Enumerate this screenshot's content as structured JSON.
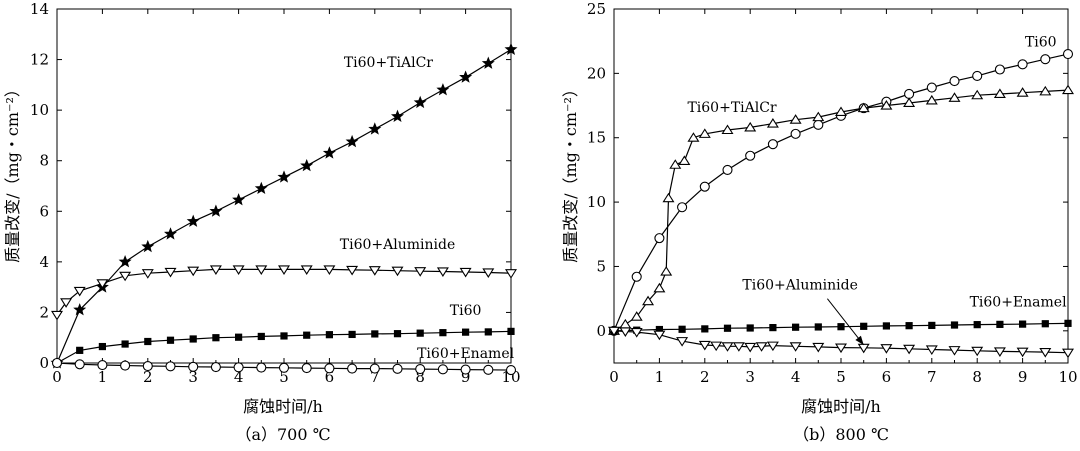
{
  "chart_data": [
    {
      "type": "line",
      "caption": "（a）700 ℃",
      "xlabel": "腐蚀时间/h",
      "ylabel": "质量改变/（mg・cm⁻²）",
      "xlim": [
        0,
        10
      ],
      "ylim": [
        0,
        14
      ],
      "xticks": [
        0,
        1,
        2,
        3,
        4,
        5,
        6,
        7,
        8,
        9,
        10
      ],
      "yticks": [
        0,
        2,
        4,
        6,
        8,
        10,
        12,
        14
      ],
      "grid": false,
      "legend": "labels placed next to curves",
      "series": [
        {
          "name": "Ti60+TiAlCr",
          "marker": "star-filled",
          "x": [
            0,
            0.5,
            1,
            1.5,
            2,
            2.5,
            3,
            3.5,
            4,
            4.5,
            5,
            5.5,
            6,
            6.5,
            7,
            7.5,
            8,
            8.5,
            9,
            9.5,
            10
          ],
          "y": [
            0,
            2.1,
            3.0,
            4.0,
            4.6,
            5.1,
            5.6,
            6.0,
            6.45,
            6.9,
            7.35,
            7.8,
            8.3,
            8.75,
            9.25,
            9.75,
            10.3,
            10.8,
            11.3,
            11.85,
            12.4
          ]
        },
        {
          "name": "Ti60+Aluminide",
          "marker": "triangle-down-open",
          "x": [
            0,
            0.2,
            0.5,
            1,
            1.5,
            2,
            2.5,
            3,
            3.5,
            4,
            4.5,
            5,
            5.5,
            6,
            6.5,
            7,
            7.5,
            8,
            8.5,
            9,
            9.5,
            10
          ],
          "y": [
            1.9,
            2.4,
            2.85,
            3.15,
            3.45,
            3.55,
            3.6,
            3.65,
            3.7,
            3.7,
            3.7,
            3.7,
            3.7,
            3.7,
            3.68,
            3.67,
            3.65,
            3.63,
            3.62,
            3.6,
            3.58,
            3.55
          ]
        },
        {
          "name": "Ti60",
          "marker": "square-filled",
          "x": [
            0,
            0.5,
            1,
            1.5,
            2,
            2.5,
            3,
            3.5,
            4,
            4.5,
            5,
            5.5,
            6,
            6.5,
            7,
            7.5,
            8,
            8.5,
            9,
            9.5,
            10
          ],
          "y": [
            0,
            0.5,
            0.65,
            0.75,
            0.85,
            0.9,
            0.95,
            1.0,
            1.02,
            1.05,
            1.07,
            1.1,
            1.12,
            1.13,
            1.15,
            1.16,
            1.18,
            1.2,
            1.22,
            1.23,
            1.25
          ]
        },
        {
          "name": "Ti60+Enamel",
          "marker": "circle-open",
          "x": [
            0,
            0.5,
            1,
            1.5,
            2,
            2.5,
            3,
            3.5,
            4,
            4.5,
            5,
            5.5,
            6,
            6.5,
            7,
            7.5,
            8,
            8.5,
            9,
            9.5,
            10
          ],
          "y": [
            0,
            -0.05,
            -0.08,
            -0.1,
            -0.12,
            -0.13,
            -0.15,
            -0.16,
            -0.17,
            -0.18,
            -0.19,
            -0.2,
            -0.21,
            -0.22,
            -0.22,
            -0.23,
            -0.24,
            -0.25,
            -0.26,
            -0.27,
            -0.28
          ]
        }
      ],
      "annotations": [
        {
          "text": "Ti60+TiAlCr",
          "x": 7.3,
          "y": 11.7
        },
        {
          "text": "Ti60+Aluminide",
          "x": 7.5,
          "y": 4.5
        },
        {
          "text": "Ti60",
          "x": 9.0,
          "y": 1.9
        },
        {
          "text": "Ti60+Enamel",
          "x": 9.0,
          "y": 0.2
        }
      ]
    },
    {
      "type": "line",
      "caption": "（b）800 ℃",
      "xlabel": "腐蚀时间/h",
      "ylabel": "质量改变/（mg・cm⁻²）",
      "xlim": [
        0,
        10
      ],
      "ylim": [
        -2.5,
        25
      ],
      "xticks": [
        0,
        1,
        2,
        3,
        4,
        5,
        6,
        7,
        8,
        9,
        10
      ],
      "yticks": [
        0,
        5,
        10,
        15,
        20,
        25
      ],
      "grid": false,
      "legend": "labels placed next to curves",
      "series": [
        {
          "name": "Ti60",
          "marker": "circle-open",
          "x": [
            0,
            0.5,
            1,
            1.5,
            2,
            2.5,
            3,
            3.5,
            4,
            4.5,
            5,
            5.5,
            6,
            6.5,
            7,
            7.5,
            8,
            8.5,
            9,
            9.5,
            10
          ],
          "y": [
            0,
            4.2,
            7.2,
            9.6,
            11.2,
            12.5,
            13.6,
            14.5,
            15.3,
            16.0,
            16.7,
            17.3,
            17.8,
            18.4,
            18.9,
            19.4,
            19.8,
            20.3,
            20.7,
            21.1,
            21.5
          ]
        },
        {
          "name": "Ti60+TiAlCr",
          "marker": "triangle-up-open",
          "x": [
            0,
            0.25,
            0.5,
            0.75,
            1.0,
            1.15,
            1.2,
            1.35,
            1.55,
            1.75,
            2.0,
            2.5,
            3.0,
            3.5,
            4.0,
            4.5,
            5.0,
            5.5,
            6.0,
            6.5,
            7.0,
            7.5,
            8.0,
            8.5,
            9.0,
            9.5,
            10.0
          ],
          "y": [
            0,
            0.5,
            1.1,
            2.3,
            3.3,
            4.6,
            10.3,
            12.9,
            13.2,
            15.0,
            15.3,
            15.6,
            15.8,
            16.1,
            16.4,
            16.6,
            17.0,
            17.3,
            17.5,
            17.7,
            17.9,
            18.1,
            18.3,
            18.4,
            18.5,
            18.6,
            18.7
          ]
        },
        {
          "name": "Ti60+Enamel",
          "marker": "square-filled",
          "x": [
            0,
            0.5,
            1,
            1.5,
            2,
            2.5,
            3,
            3.5,
            4,
            4.5,
            5,
            5.5,
            6,
            6.5,
            7,
            7.5,
            8,
            8.5,
            9,
            9.5,
            10
          ],
          "y": [
            0,
            0.05,
            0.1,
            0.12,
            0.15,
            0.2,
            0.22,
            0.25,
            0.28,
            0.3,
            0.32,
            0.35,
            0.38,
            0.4,
            0.42,
            0.45,
            0.48,
            0.5,
            0.52,
            0.55,
            0.58
          ]
        },
        {
          "name": "Ti60+Aluminide",
          "marker": "triangle-down-open",
          "x": [
            0,
            0.25,
            0.5,
            1.0,
            1.5,
            2.0,
            2.25,
            2.5,
            2.75,
            3.0,
            3.25,
            3.5,
            4.0,
            4.5,
            5.0,
            5.5,
            6.0,
            6.5,
            7.0,
            7.5,
            8.0,
            8.5,
            9.0,
            9.5,
            10.0
          ],
          "y": [
            0,
            -0.05,
            -0.1,
            -0.3,
            -0.8,
            -1.1,
            -1.15,
            -1.2,
            -1.2,
            -1.25,
            -1.2,
            -1.15,
            -1.2,
            -1.25,
            -1.3,
            -1.32,
            -1.35,
            -1.4,
            -1.45,
            -1.5,
            -1.55,
            -1.6,
            -1.62,
            -1.65,
            -1.7
          ]
        }
      ],
      "annotations": [
        {
          "text": "Ti60",
          "x": 9.4,
          "y": 22.1
        },
        {
          "text": "Ti60+TiAlCr",
          "x": 2.6,
          "y": 17.0
        },
        {
          "text": "Ti60+Aluminide",
          "x": 4.1,
          "y": 3.2
        },
        {
          "text": "Ti60+Enamel",
          "x": 8.9,
          "y": 1.9
        }
      ],
      "arrow": {
        "from": [
          4.7,
          2.5
        ],
        "to": [
          5.5,
          -1.1
        ]
      }
    }
  ]
}
